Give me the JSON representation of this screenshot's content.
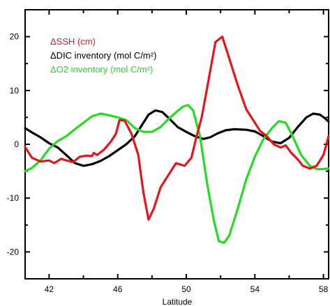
{
  "chart_data": {
    "type": "line",
    "title": "",
    "xlabel": "Latitude",
    "ylabel": "",
    "xlim": [
      40.6,
      58.3
    ],
    "ylim": [
      -25,
      25
    ],
    "xticks": [
      42,
      46,
      50,
      54,
      58
    ],
    "yticks": [
      -20,
      -10,
      0,
      10,
      20
    ],
    "grid": false,
    "legend": {
      "placement": "top-left",
      "entries": [
        {
          "label": "ΔSSH (cm)",
          "color": "#e8141c"
        },
        {
          "label": "ΔDIC inventory (mol C/m²)",
          "color": "#000000"
        },
        {
          "label": "ΔO2 inventory (mol C/m²)",
          "color": "#22dd22"
        }
      ]
    },
    "series": [
      {
        "name": "ΔSSH (cm)",
        "color": "#e8141c",
        "points": [
          [
            40.6,
            -0.5
          ],
          [
            41.0,
            -2.5
          ],
          [
            41.5,
            -3.2
          ],
          [
            42.0,
            -3.0
          ],
          [
            42.3,
            -3.5
          ],
          [
            42.7,
            -2.7
          ],
          [
            43.0,
            -3.0
          ],
          [
            43.4,
            -3.3
          ],
          [
            43.8,
            -2.3
          ],
          [
            44.2,
            -2.1
          ],
          [
            44.5,
            -2.2
          ],
          [
            44.6,
            -1.6
          ],
          [
            44.8,
            -2.0
          ],
          [
            45.2,
            -1.0
          ],
          [
            45.6,
            0.5
          ],
          [
            45.9,
            2.0
          ],
          [
            46.1,
            4.5
          ],
          [
            46.4,
            4.4
          ],
          [
            46.8,
            2.0
          ],
          [
            47.2,
            -2.0
          ],
          [
            47.5,
            -9.0
          ],
          [
            47.8,
            -14.0
          ],
          [
            48.1,
            -12.0
          ],
          [
            48.5,
            -8.0
          ],
          [
            49.0,
            -5.5
          ],
          [
            49.4,
            -3.5
          ],
          [
            49.9,
            -4.0
          ],
          [
            50.3,
            -2.5
          ],
          [
            50.6,
            1.5
          ],
          [
            50.9,
            5.0
          ],
          [
            51.3,
            12.0
          ],
          [
            51.7,
            19.0
          ],
          [
            52.1,
            20.0
          ],
          [
            52.5,
            16.0
          ],
          [
            53.0,
            11.0
          ],
          [
            53.5,
            6.5
          ],
          [
            54.0,
            4.0
          ],
          [
            54.3,
            2.5
          ],
          [
            54.7,
            1.5
          ],
          [
            55.1,
            0.0
          ],
          [
            55.5,
            -0.6
          ],
          [
            55.8,
            -0.2
          ],
          [
            56.1,
            -1.5
          ],
          [
            56.5,
            -2.8
          ],
          [
            56.8,
            -4.0
          ],
          [
            57.2,
            -4.5
          ],
          [
            57.6,
            -4.0
          ],
          [
            58.0,
            -2.0
          ],
          [
            58.3,
            1.5
          ]
        ]
      },
      {
        "name": "ΔDIC inventory (mol C/m²)",
        "color": "#000000",
        "points": [
          [
            40.6,
            3.0
          ],
          [
            41.0,
            2.2
          ],
          [
            41.5,
            1.3
          ],
          [
            42.0,
            0.2
          ],
          [
            42.5,
            -0.6
          ],
          [
            43.0,
            -2.0
          ],
          [
            43.5,
            -3.5
          ],
          [
            44.0,
            -4.0
          ],
          [
            44.5,
            -3.7
          ],
          [
            45.0,
            -3.1
          ],
          [
            45.5,
            -2.2
          ],
          [
            46.0,
            -1.1
          ],
          [
            46.5,
            0.0
          ],
          [
            47.0,
            1.5
          ],
          [
            47.4,
            3.5
          ],
          [
            47.8,
            5.5
          ],
          [
            48.2,
            6.3
          ],
          [
            48.6,
            6.0
          ],
          [
            49.0,
            4.8
          ],
          [
            49.5,
            3.2
          ],
          [
            50.0,
            2.3
          ],
          [
            50.5,
            1.5
          ],
          [
            51.0,
            1.0
          ],
          [
            51.4,
            1.3
          ],
          [
            51.8,
            2.0
          ],
          [
            52.3,
            2.6
          ],
          [
            52.8,
            2.8
          ],
          [
            53.5,
            2.7
          ],
          [
            54.0,
            2.4
          ],
          [
            54.5,
            1.5
          ],
          [
            55.0,
            0.5
          ],
          [
            55.5,
            0.2
          ],
          [
            56.0,
            1.2
          ],
          [
            56.5,
            3.2
          ],
          [
            57.0,
            5.0
          ],
          [
            57.4,
            5.7
          ],
          [
            57.8,
            5.5
          ],
          [
            58.1,
            4.8
          ],
          [
            58.3,
            4.2
          ]
        ]
      },
      {
        "name": "ΔO2 inventory (mol C/m²)",
        "color": "#22dd22",
        "points": [
          [
            40.6,
            -5.0
          ],
          [
            41.0,
            -4.4
          ],
          [
            41.5,
            -3.0
          ],
          [
            42.0,
            -0.8
          ],
          [
            42.5,
            0.6
          ],
          [
            43.0,
            1.5
          ],
          [
            43.5,
            2.8
          ],
          [
            44.0,
            4.0
          ],
          [
            44.5,
            5.2
          ],
          [
            45.0,
            5.7
          ],
          [
            45.5,
            5.4
          ],
          [
            46.0,
            5.0
          ],
          [
            46.5,
            4.5
          ],
          [
            47.0,
            3.0
          ],
          [
            47.5,
            2.3
          ],
          [
            48.0,
            2.3
          ],
          [
            48.5,
            3.2
          ],
          [
            49.0,
            4.8
          ],
          [
            49.5,
            6.2
          ],
          [
            49.8,
            7.0
          ],
          [
            50.1,
            7.3
          ],
          [
            50.4,
            6.3
          ],
          [
            50.8,
            1.5
          ],
          [
            51.2,
            -7.0
          ],
          [
            51.6,
            -14.0
          ],
          [
            51.9,
            -18.0
          ],
          [
            52.2,
            -18.3
          ],
          [
            52.5,
            -17.0
          ],
          [
            53.0,
            -12.0
          ],
          [
            53.5,
            -6.5
          ],
          [
            54.0,
            -2.3
          ],
          [
            54.5,
            1.0
          ],
          [
            55.0,
            3.0
          ],
          [
            55.4,
            4.3
          ],
          [
            55.8,
            4.0
          ],
          [
            56.2,
            1.5
          ],
          [
            56.7,
            -2.0
          ],
          [
            57.2,
            -4.0
          ],
          [
            57.6,
            -4.6
          ],
          [
            58.0,
            -4.6
          ],
          [
            58.3,
            -4.5
          ]
        ]
      }
    ]
  }
}
